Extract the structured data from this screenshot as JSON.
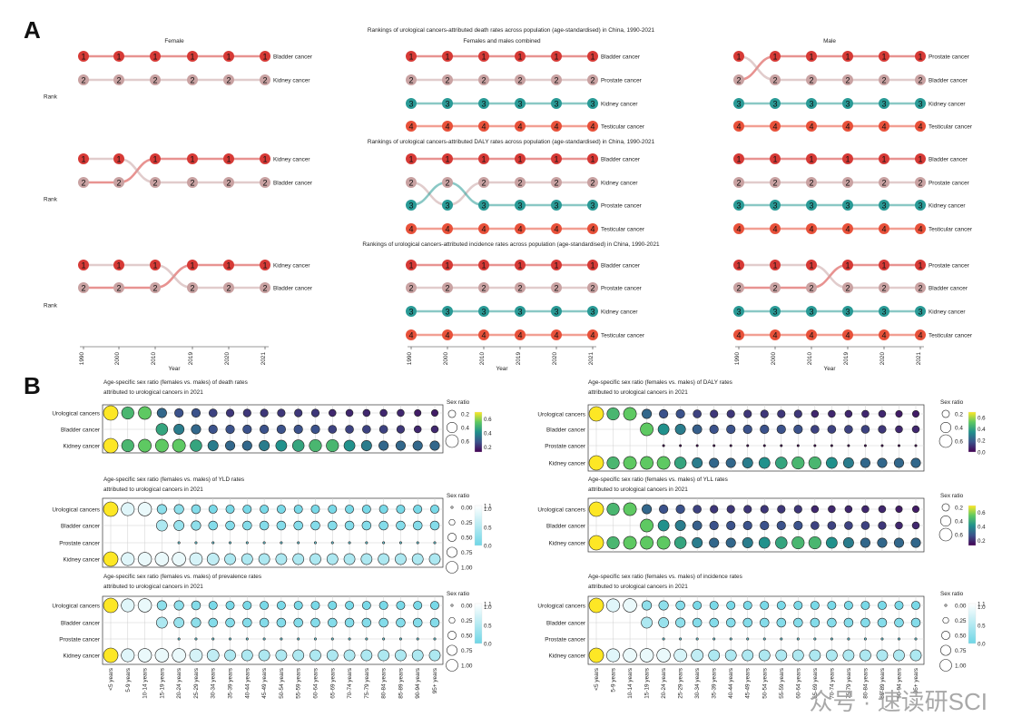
{
  "panel_a_letter": "A",
  "panel_b_letter": "B",
  "x_axis_title": "Year",
  "rank_label": "Rank",
  "sex_ratio_label": "Sex ratio",
  "watermark": "众号 · 速读研SCI",
  "colors": {
    "rank1": "#d63a36",
    "rank2": "#c9a2a2",
    "rank3": "#2a9a96",
    "rank4": "#e8513a",
    "viridis": [
      "#440154",
      "#3b528b",
      "#21918c",
      "#5ec962",
      "#fde725"
    ],
    "cyan_low": "#6fd6e6",
    "cyan_high": "#ffffff"
  },
  "chart_data": [
    {
      "type": "bump",
      "group": "deaths",
      "title": "Rankings of urological cancers-attributed death rates across population (age-standardised) in China, 1990-2021",
      "x": [
        "1990",
        "2000",
        "2010",
        "2019",
        "2020",
        "2021"
      ],
      "panels": [
        {
          "subtitle": "Female",
          "series": [
            {
              "name": "Bladder cancer",
              "ranks": [
                1,
                1,
                1,
                1,
                1,
                1
              ]
            },
            {
              "name": "Kidney cancer",
              "ranks": [
                2,
                2,
                2,
                2,
                2,
                2
              ]
            }
          ]
        },
        {
          "subtitle": "Females and males combined",
          "series": [
            {
              "name": "Bladder cancer",
              "ranks": [
                1,
                1,
                1,
                1,
                1,
                1
              ]
            },
            {
              "name": "Prostate cancer",
              "ranks": [
                2,
                2,
                2,
                2,
                2,
                2
              ]
            },
            {
              "name": "Kidney cancer",
              "ranks": [
                3,
                3,
                3,
                3,
                3,
                3
              ]
            },
            {
              "name": "Testicular cancer",
              "ranks": [
                4,
                4,
                4,
                4,
                4,
                4
              ]
            }
          ]
        },
        {
          "subtitle": "Male",
          "series": [
            {
              "name": "Prostate cancer",
              "ranks": [
                2,
                1,
                1,
                1,
                1,
                1
              ]
            },
            {
              "name": "Bladder cancer",
              "ranks": [
                1,
                2,
                2,
                2,
                2,
                2
              ]
            },
            {
              "name": "Kidney cancer",
              "ranks": [
                3,
                3,
                3,
                3,
                3,
                3
              ]
            },
            {
              "name": "Testicular cancer",
              "ranks": [
                4,
                4,
                4,
                4,
                4,
                4
              ]
            }
          ]
        }
      ]
    },
    {
      "type": "bump",
      "group": "daly",
      "title": "Rankings of urological cancers-attributed DALY rates across population (age-standardised) in China, 1990-2021",
      "x": [
        "1990",
        "2000",
        "2010",
        "2019",
        "2020",
        "2021"
      ],
      "panels": [
        {
          "subtitle": "",
          "series": [
            {
              "name": "Kidney cancer",
              "ranks": [
                2,
                2,
                1,
                1,
                1,
                1
              ]
            },
            {
              "name": "Bladder cancer",
              "ranks": [
                1,
                1,
                2,
                2,
                2,
                2
              ]
            }
          ]
        },
        {
          "subtitle": "",
          "series": [
            {
              "name": "Bladder cancer",
              "ranks": [
                1,
                1,
                1,
                1,
                1,
                1
              ]
            },
            {
              "name": "Kidney cancer",
              "ranks": [
                2,
                3,
                2,
                2,
                2,
                2
              ]
            },
            {
              "name": "Prostate cancer",
              "ranks": [
                3,
                2,
                3,
                3,
                3,
                3
              ]
            },
            {
              "name": "Testicular cancer",
              "ranks": [
                4,
                4,
                4,
                4,
                4,
                4
              ]
            }
          ]
        },
        {
          "subtitle": "",
          "series": [
            {
              "name": "Bladder cancer",
              "ranks": [
                1,
                1,
                1,
                1,
                1,
                1
              ]
            },
            {
              "name": "Prostate cancer",
              "ranks": [
                2,
                2,
                2,
                2,
                2,
                2
              ]
            },
            {
              "name": "Kidney cancer",
              "ranks": [
                3,
                3,
                3,
                3,
                3,
                3
              ]
            },
            {
              "name": "Testicular cancer",
              "ranks": [
                4,
                4,
                4,
                4,
                4,
                4
              ]
            }
          ]
        }
      ]
    },
    {
      "type": "bump",
      "group": "incidence",
      "title": "Rankings of urological cancers-attributed incidence rates across population (age-standardised) in China, 1990-2021",
      "x": [
        "1990",
        "2000",
        "2010",
        "2019",
        "2020",
        "2021"
      ],
      "panels": [
        {
          "subtitle": "",
          "series": [
            {
              "name": "Kidney cancer",
              "ranks": [
                2,
                2,
                2,
                1,
                1,
                1
              ]
            },
            {
              "name": "Bladder cancer",
              "ranks": [
                1,
                1,
                1,
                2,
                2,
                2
              ]
            }
          ]
        },
        {
          "subtitle": "",
          "series": [
            {
              "name": "Bladder cancer",
              "ranks": [
                1,
                1,
                1,
                1,
                1,
                1
              ]
            },
            {
              "name": "Prostate cancer",
              "ranks": [
                2,
                2,
                2,
                2,
                2,
                2
              ]
            },
            {
              "name": "Kidney cancer",
              "ranks": [
                3,
                3,
                3,
                3,
                3,
                3
              ]
            },
            {
              "name": "Testicular cancer",
              "ranks": [
                4,
                4,
                4,
                4,
                4,
                4
              ]
            }
          ]
        },
        {
          "subtitle": "",
          "series": [
            {
              "name": "Prostate cancer",
              "ranks": [
                2,
                2,
                2,
                1,
                1,
                1
              ]
            },
            {
              "name": "Bladder cancer",
              "ranks": [
                1,
                1,
                1,
                2,
                2,
                2
              ]
            },
            {
              "name": "Kidney cancer",
              "ranks": [
                3,
                3,
                3,
                3,
                3,
                3
              ]
            },
            {
              "name": "Testicular cancer",
              "ranks": [
                4,
                4,
                4,
                4,
                4,
                4
              ]
            }
          ]
        }
      ]
    },
    {
      "type": "bubble",
      "title": "Age-specific sex ratio (females vs. males) of death rates attributed to urological cancers in 2021",
      "scale": "viridis",
      "legend_sizes": [
        "0.2",
        "0.4",
        "0.6"
      ],
      "colorbar_ticks": [
        "0.2",
        "0.4",
        "0.6"
      ],
      "rows": [
        "Urological cancers",
        "Bladder cancer",
        "Kidney cancer"
      ],
      "values": [
        [
          0.7,
          0.5,
          0.55,
          0.3,
          0.25,
          0.25,
          0.22,
          0.2,
          0.2,
          0.2,
          0.2,
          0.2,
          0.2,
          0.17,
          0.17,
          0.17,
          0.17,
          0.17,
          0.15,
          0.15
        ],
        [
          null,
          null,
          null,
          0.45,
          0.35,
          0.3,
          0.25,
          0.25,
          0.25,
          0.25,
          0.25,
          0.25,
          0.25,
          0.22,
          0.22,
          0.22,
          0.22,
          0.2,
          0.17,
          0.17
        ],
        [
          0.7,
          0.5,
          0.55,
          0.55,
          0.55,
          0.45,
          0.35,
          0.3,
          0.3,
          0.35,
          0.4,
          0.45,
          0.5,
          0.5,
          0.4,
          0.35,
          0.3,
          0.3,
          0.3,
          0.3
        ]
      ]
    },
    {
      "type": "bubble",
      "title": "Age-specific sex ratio (females vs. males) of DALY rates attributed to urological cancers in 2021",
      "scale": "viridis",
      "legend_sizes": [
        "0.2",
        "0.4",
        "0.6"
      ],
      "colorbar_ticks": [
        "0.0",
        "0.2",
        "0.4",
        "0.6"
      ],
      "rows": [
        "Urological cancers",
        "Bladder cancer",
        "Prostate cancer",
        "Kidney cancer"
      ],
      "values": [
        [
          0.7,
          0.5,
          0.55,
          0.3,
          0.25,
          0.25,
          0.22,
          0.2,
          0.2,
          0.2,
          0.2,
          0.2,
          0.2,
          0.17,
          0.17,
          0.17,
          0.17,
          0.17,
          0.15,
          0.15
        ],
        [
          null,
          null,
          null,
          0.55,
          0.4,
          0.35,
          0.28,
          0.25,
          0.25,
          0.25,
          0.25,
          0.25,
          0.25,
          0.22,
          0.22,
          0.22,
          0.22,
          0.2,
          0.17,
          0.17
        ],
        [
          null,
          null,
          null,
          null,
          0.01,
          0.01,
          0.01,
          0.01,
          0.01,
          0.01,
          0.01,
          0.01,
          0.01,
          0.01,
          0.01,
          0.01,
          0.01,
          0.01,
          0.01,
          0.01
        ],
        [
          0.7,
          0.5,
          0.55,
          0.55,
          0.55,
          0.45,
          0.35,
          0.3,
          0.3,
          0.35,
          0.4,
          0.45,
          0.5,
          0.5,
          0.4,
          0.35,
          0.3,
          0.3,
          0.3,
          0.3
        ]
      ]
    },
    {
      "type": "bubble",
      "title": "Age-specific sex ratio (females vs. males) of YLD rates attributed to urological cancers in 2021",
      "scale": "cyan",
      "legend_sizes": [
        "0.00",
        "0.25",
        "0.50",
        "0.75",
        "1.00"
      ],
      "colorbar_ticks": [
        "0.0",
        "0.5",
        "1.0",
        "1.1"
      ],
      "rows": [
        "Urological cancers",
        "Bladder cancer",
        "Prostate cancer",
        "Kidney cancer"
      ],
      "values": [
        [
          1.05,
          0.85,
          0.9,
          0.45,
          0.45,
          0.4,
          0.35,
          0.35,
          0.35,
          0.35,
          0.35,
          0.35,
          0.35,
          0.35,
          0.35,
          0.35,
          0.35,
          0.35,
          0.35,
          0.35
        ],
        [
          null,
          null,
          null,
          0.6,
          0.5,
          0.45,
          0.4,
          0.4,
          0.4,
          0.4,
          0.4,
          0.4,
          0.4,
          0.4,
          0.4,
          0.4,
          0.4,
          0.4,
          0.4,
          0.4
        ],
        [
          null,
          null,
          null,
          null,
          0.02,
          0.02,
          0.02,
          0.02,
          0.02,
          0.02,
          0.02,
          0.02,
          0.02,
          0.02,
          0.02,
          0.02,
          0.02,
          0.02,
          0.02,
          0.02
        ],
        [
          1.05,
          0.85,
          0.9,
          0.9,
          0.9,
          0.8,
          0.7,
          0.6,
          0.6,
          0.6,
          0.6,
          0.6,
          0.6,
          0.6,
          0.6,
          0.6,
          0.6,
          0.6,
          0.6,
          0.6
        ]
      ]
    },
    {
      "type": "bubble",
      "title": "Age-specific sex ratio (females vs. males) of YLL rates attributed to urological cancers in 2021",
      "scale": "viridis",
      "legend_sizes": [
        "0.2",
        "0.4",
        "0.6"
      ],
      "colorbar_ticks": [
        "0.2",
        "0.4",
        "0.6"
      ],
      "rows": [
        "Urological cancers",
        "Bladder cancer",
        "Kidney cancer"
      ],
      "values": [
        [
          0.7,
          0.5,
          0.55,
          0.3,
          0.25,
          0.25,
          0.22,
          0.2,
          0.2,
          0.2,
          0.2,
          0.2,
          0.2,
          0.17,
          0.17,
          0.17,
          0.17,
          0.17,
          0.15,
          0.15
        ],
        [
          null,
          null,
          null,
          0.55,
          0.4,
          0.35,
          0.28,
          0.25,
          0.25,
          0.25,
          0.25,
          0.25,
          0.25,
          0.22,
          0.22,
          0.22,
          0.22,
          0.2,
          0.17,
          0.17
        ],
        [
          0.7,
          0.5,
          0.55,
          0.55,
          0.55,
          0.45,
          0.35,
          0.3,
          0.3,
          0.35,
          0.4,
          0.45,
          0.5,
          0.5,
          0.4,
          0.35,
          0.3,
          0.3,
          0.3,
          0.3
        ]
      ]
    },
    {
      "type": "bubble",
      "title": "Age-specific sex ratio (females vs. males) of prevalence rates attributed to urological cancers in 2021",
      "scale": "cyan",
      "legend_sizes": [
        "0.00",
        "0.25",
        "0.50",
        "0.75",
        "1.00"
      ],
      "colorbar_ticks": [
        "0.0",
        "0.5",
        "1.0",
        "1.1"
      ],
      "rows": [
        "Urological cancers",
        "Bladder cancer",
        "Prostate cancer",
        "Kidney cancer"
      ],
      "values": [
        [
          1.05,
          0.85,
          0.9,
          0.45,
          0.45,
          0.4,
          0.35,
          0.35,
          0.35,
          0.35,
          0.35,
          0.35,
          0.35,
          0.35,
          0.35,
          0.35,
          0.35,
          0.35,
          0.35,
          0.35
        ],
        [
          null,
          null,
          null,
          0.6,
          0.5,
          0.45,
          0.4,
          0.4,
          0.4,
          0.4,
          0.4,
          0.4,
          0.4,
          0.4,
          0.4,
          0.4,
          0.4,
          0.4,
          0.4,
          0.4
        ],
        [
          null,
          null,
          null,
          null,
          0.02,
          0.02,
          0.02,
          0.02,
          0.02,
          0.02,
          0.02,
          0.02,
          0.02,
          0.02,
          0.02,
          0.02,
          0.02,
          0.02,
          0.02,
          0.02
        ],
        [
          1.05,
          0.85,
          0.9,
          0.9,
          0.9,
          0.8,
          0.7,
          0.6,
          0.6,
          0.6,
          0.6,
          0.6,
          0.6,
          0.6,
          0.6,
          0.6,
          0.6,
          0.6,
          0.6,
          0.6
        ]
      ]
    },
    {
      "type": "bubble",
      "title": "Age-specific sex ratio (females vs. males) of incidence rates attributed to urological cancers in 2021",
      "scale": "cyan",
      "legend_sizes": [
        "0.00",
        "0.25",
        "0.50",
        "0.75",
        "1.00"
      ],
      "colorbar_ticks": [
        "0.0",
        "0.5",
        "1.0",
        "1.1"
      ],
      "rows": [
        "Urological cancers",
        "Bladder cancer",
        "Prostate cancer",
        "Kidney cancer"
      ],
      "values": [
        [
          1.05,
          0.85,
          0.9,
          0.45,
          0.45,
          0.4,
          0.35,
          0.35,
          0.35,
          0.35,
          0.35,
          0.35,
          0.35,
          0.35,
          0.35,
          0.35,
          0.35,
          0.35,
          0.35,
          0.35
        ],
        [
          null,
          null,
          null,
          0.6,
          0.5,
          0.45,
          0.4,
          0.4,
          0.4,
          0.4,
          0.4,
          0.4,
          0.4,
          0.4,
          0.4,
          0.4,
          0.4,
          0.4,
          0.4,
          0.4
        ],
        [
          null,
          null,
          null,
          null,
          0.02,
          0.02,
          0.02,
          0.02,
          0.02,
          0.02,
          0.02,
          0.02,
          0.02,
          0.02,
          0.02,
          0.02,
          0.02,
          0.02,
          0.02,
          0.02
        ],
        [
          1.05,
          0.85,
          0.9,
          0.9,
          0.9,
          0.8,
          0.7,
          0.6,
          0.6,
          0.6,
          0.6,
          0.6,
          0.6,
          0.6,
          0.6,
          0.6,
          0.6,
          0.6,
          0.6,
          0.6
        ]
      ]
    }
  ],
  "age_groups": [
    "<5 years",
    "5-9 years",
    "10-14 years",
    "15-19 years",
    "20-24 years",
    "25-29 years",
    "30-34 years",
    "35-39 years",
    "40-44 years",
    "45-49 years",
    "50-54 years",
    "55-59 years",
    "60-64 years",
    "65-69 years",
    "70-74 years",
    "75-79 years",
    "80-84 years",
    "85-89 years",
    "90-94 years",
    "95+ years"
  ]
}
